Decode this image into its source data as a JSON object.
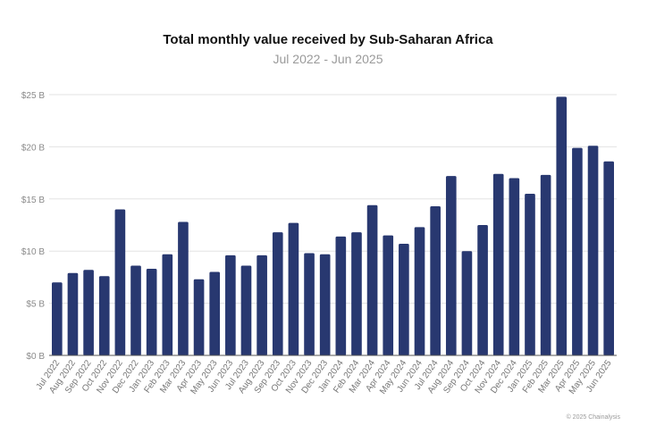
{
  "chart_data": {
    "type": "bar",
    "title": "Total monthly value received by Sub-Saharan Africa",
    "subtitle": "Jul 2022 - Jun 2025",
    "xlabel": "",
    "ylabel": "",
    "ylim": [
      0,
      25
    ],
    "y_ticks": [
      0,
      5,
      10,
      15,
      20,
      25
    ],
    "y_tick_labels": [
      "$0 B",
      "$5 B",
      "$10 B",
      "$15 B",
      "$20 B",
      "$25 B"
    ],
    "grid": true,
    "bar_color": "#283870",
    "categories": [
      "Jul 2022",
      "Aug 2022",
      "Sep 2022",
      "Oct 2022",
      "Nov 2022",
      "Dec 2022",
      "Jan 2023",
      "Feb 2023",
      "Mar 2023",
      "Apr 2023",
      "May 2023",
      "Jun 2023",
      "Jul 2023",
      "Aug 2023",
      "Sep 2023",
      "Oct 2023",
      "Nov 2023",
      "Dec 2023",
      "Jan 2024",
      "Feb 2024",
      "Mar 2024",
      "Apr 2024",
      "May 2024",
      "Jun 2024",
      "Jul 2024",
      "Aug 2024",
      "Sep 2024",
      "Oct 2024",
      "Nov 2024",
      "Dec 2024",
      "Jan 2025",
      "Feb 2025",
      "Mar 2025",
      "Apr 2025",
      "May 2025",
      "Jun 2025"
    ],
    "values": [
      7.0,
      7.9,
      8.2,
      7.6,
      14.0,
      8.6,
      8.3,
      9.7,
      12.8,
      7.3,
      8.0,
      9.6,
      8.6,
      9.6,
      11.8,
      12.7,
      9.8,
      9.7,
      11.4,
      11.8,
      14.4,
      11.5,
      10.7,
      12.3,
      14.3,
      17.2,
      10.0,
      12.5,
      17.4,
      17.0,
      15.5,
      17.3,
      24.8,
      19.9,
      20.1,
      18.6
    ]
  },
  "credit": "© 2025 Chainalysis"
}
